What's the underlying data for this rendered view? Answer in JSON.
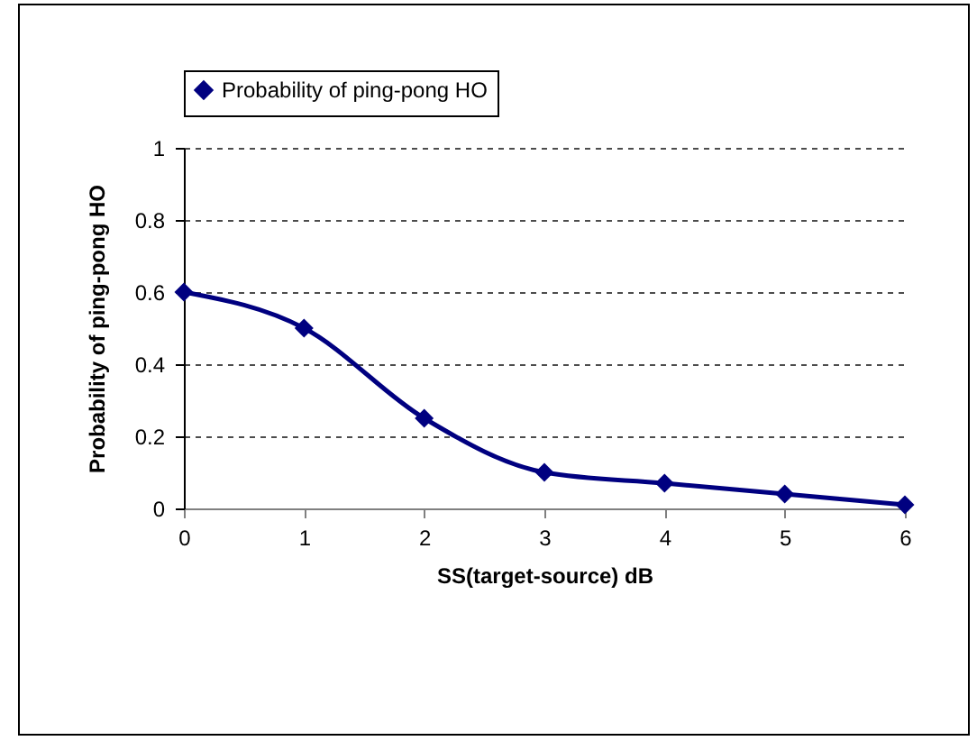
{
  "chart_data": {
    "type": "line",
    "xlabel": "SS(target-source) dB",
    "ylabel": "Probability of ping-pong HO",
    "x": [
      0,
      1,
      2,
      3,
      4,
      5,
      6
    ],
    "series": [
      {
        "name": "Probability of ping-pong HO",
        "color": "#000080",
        "values": [
          0.6,
          0.5,
          0.25,
          0.1,
          0.07,
          0.04,
          0.01
        ]
      }
    ],
    "xlim": [
      0,
      6
    ],
    "xticks": [
      0,
      1,
      2,
      3,
      4,
      5,
      6
    ],
    "ylim": [
      0,
      1
    ],
    "yticks": [
      0,
      0.2,
      0.4,
      0.6,
      0.8,
      1
    ],
    "grid": "y",
    "legend": "top",
    "marker": "diamond",
    "line_style": "solid"
  }
}
